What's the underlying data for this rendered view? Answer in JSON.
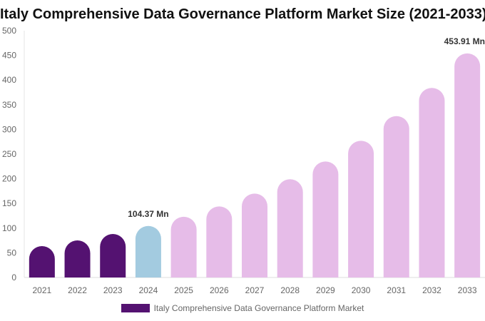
{
  "chart_data": {
    "type": "bar",
    "title": "Italy Comprehensive Data Governance Platform Market Size (2021-2033)",
    "categories": [
      "2021",
      "2022",
      "2023",
      "2024",
      "2025",
      "2026",
      "2027",
      "2028",
      "2029",
      "2030",
      "2031",
      "2032",
      "2033"
    ],
    "series": [
      {
        "name": "Italy Comprehensive Data Governance Platform Market",
        "values": [
          63.6,
          75.1,
          88.2,
          104.37,
          123,
          144,
          170,
          199,
          235,
          277,
          327,
          384,
          453.91
        ]
      }
    ],
    "bar_colors": [
      "#541271",
      "#541271",
      "#541271",
      "#a3cbe0",
      "#e6bce8",
      "#e6bce8",
      "#e6bce8",
      "#e6bce8",
      "#e6bce8",
      "#e6bce8",
      "#e6bce8",
      "#e6bce8",
      "#e6bce8"
    ],
    "legend_color": "#541271",
    "data_labels": [
      {
        "index": 3,
        "text": "104.37 Mn"
      },
      {
        "index": 12,
        "text": "453.91 Mn"
      }
    ],
    "yticks": [
      0,
      50,
      100,
      150,
      200,
      250,
      300,
      350,
      400,
      450,
      500
    ],
    "ylim": [
      0,
      500
    ],
    "xlabel": "",
    "ylabel": "",
    "grid": false,
    "legend_position": "bottom"
  }
}
